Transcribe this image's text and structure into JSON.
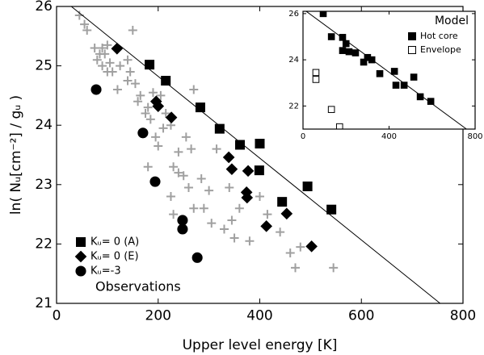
{
  "chart_data": [
    {
      "type": "scatter",
      "xlabel": "Upper level energy [K]",
      "ylabel": "ln( Nᵤ[cm⁻²] / gᵤ )",
      "legend_title": "Observations",
      "legend": "lower left",
      "xlim": [
        0,
        800
      ],
      "ylim": [
        21,
        26
      ],
      "xticks": [
        0,
        200,
        400,
        600,
        800
      ],
      "yticks": [
        21,
        22,
        23,
        24,
        25,
        26
      ],
      "line": {
        "x": [
          0,
          755
        ],
        "y": [
          26.2,
          21
        ]
      },
      "series": [
        {
          "color": "#a0a0a0",
          "marker": "plus",
          "filled": true,
          "x": [
            45,
            55,
            60,
            75,
            80,
            85,
            90,
            95,
            100,
            90,
            100,
            105,
            125,
            140,
            145,
            140,
            155,
            160,
            165,
            175,
            180,
            185,
            190,
            205,
            195,
            200,
            210,
            215,
            225,
            230,
            240,
            240,
            250,
            255,
            265,
            270,
            260,
            270,
            290,
            300,
            305,
            315,
            330,
            345,
            350,
            360,
            380,
            400,
            415,
            440,
            460,
            480,
            545,
            150,
            110,
            180,
            225,
            285,
            340,
            470,
            120,
            230
          ],
          "values": [
            25.85,
            25.7,
            25.6,
            25.3,
            25.1,
            25.2,
            25.3,
            25.2,
            25.35,
            25.0,
            24.9,
            25.05,
            25.0,
            25.1,
            24.9,
            24.75,
            24.7,
            24.4,
            24.5,
            24.2,
            24.3,
            24.1,
            24.55,
            24.5,
            23.8,
            23.65,
            23.95,
            24.2,
            24.0,
            23.3,
            23.55,
            23.2,
            23.15,
            23.8,
            23.6,
            24.6,
            22.95,
            22.6,
            22.6,
            22.9,
            22.35,
            23.6,
            22.25,
            22.4,
            22.1,
            22.6,
            22.05,
            22.8,
            22.5,
            22.2,
            21.85,
            21.95,
            21.6,
            25.6,
            24.9,
            23.3,
            22.8,
            23.1,
            22.95,
            21.6,
            24.6,
            22.5
          ]
        },
        {
          "name": "Kᵤ= 0 (A)",
          "color": "#000000",
          "marker": "square",
          "filled": true,
          "x": [
            183,
            215,
            283,
            321,
            361,
            400,
            399,
            444,
            494,
            541
          ],
          "values": [
            25.02,
            24.75,
            24.3,
            23.94,
            23.67,
            23.69,
            23.24,
            22.71,
            22.97,
            22.58
          ]
        },
        {
          "name": "Kᵤ= 0 (E)",
          "color": "#000000",
          "marker": "diamond",
          "filled": true,
          "x": [
            119,
            196,
            200,
            226,
            339,
            345,
            377,
            374,
            375,
            453,
            413,
            502
          ],
          "values": [
            25.29,
            24.4,
            24.32,
            24.13,
            23.46,
            23.26,
            23.23,
            22.87,
            22.78,
            22.51,
            22.3,
            21.96
          ]
        },
        {
          "name": "Kᵤ=-3",
          "color": "#000000",
          "marker": "circle",
          "filled": true,
          "x": [
            78,
            170,
            194,
            248,
            248,
            277
          ],
          "values": [
            24.6,
            23.87,
            23.05,
            22.4,
            22.25,
            21.77
          ]
        }
      ]
    },
    {
      "type": "scatter",
      "legend_title": "Model",
      "legend": "upper right",
      "xlim": [
        0,
        800
      ],
      "ylim": [
        21,
        26.1
      ],
      "xticks": [
        0,
        400,
        800
      ],
      "yticks": [
        22,
        24,
        26
      ],
      "line": {
        "x": [
          0,
          760
        ],
        "y": [
          26.2,
          21
        ]
      },
      "series": [
        {
          "name": "Hot core",
          "color": "#000000",
          "marker": "square",
          "filled": true,
          "x": [
            94,
            132,
            184,
            200,
            184,
            214,
            244,
            300,
            282,
            320,
            357,
            425,
            432,
            470,
            515,
            545,
            594
          ],
          "values": [
            26.0,
            25.0,
            24.97,
            24.7,
            24.4,
            24.35,
            24.3,
            24.1,
            23.9,
            24.0,
            23.4,
            23.5,
            22.9,
            22.9,
            23.25,
            22.4,
            22.2
          ]
        },
        {
          "name": "Envelope",
          "color": "#000000",
          "marker": "square",
          "filled": false,
          "x": [
            60,
            60,
            132,
            170
          ],
          "values": [
            23.45,
            23.15,
            21.85,
            21.1
          ]
        }
      ]
    }
  ]
}
